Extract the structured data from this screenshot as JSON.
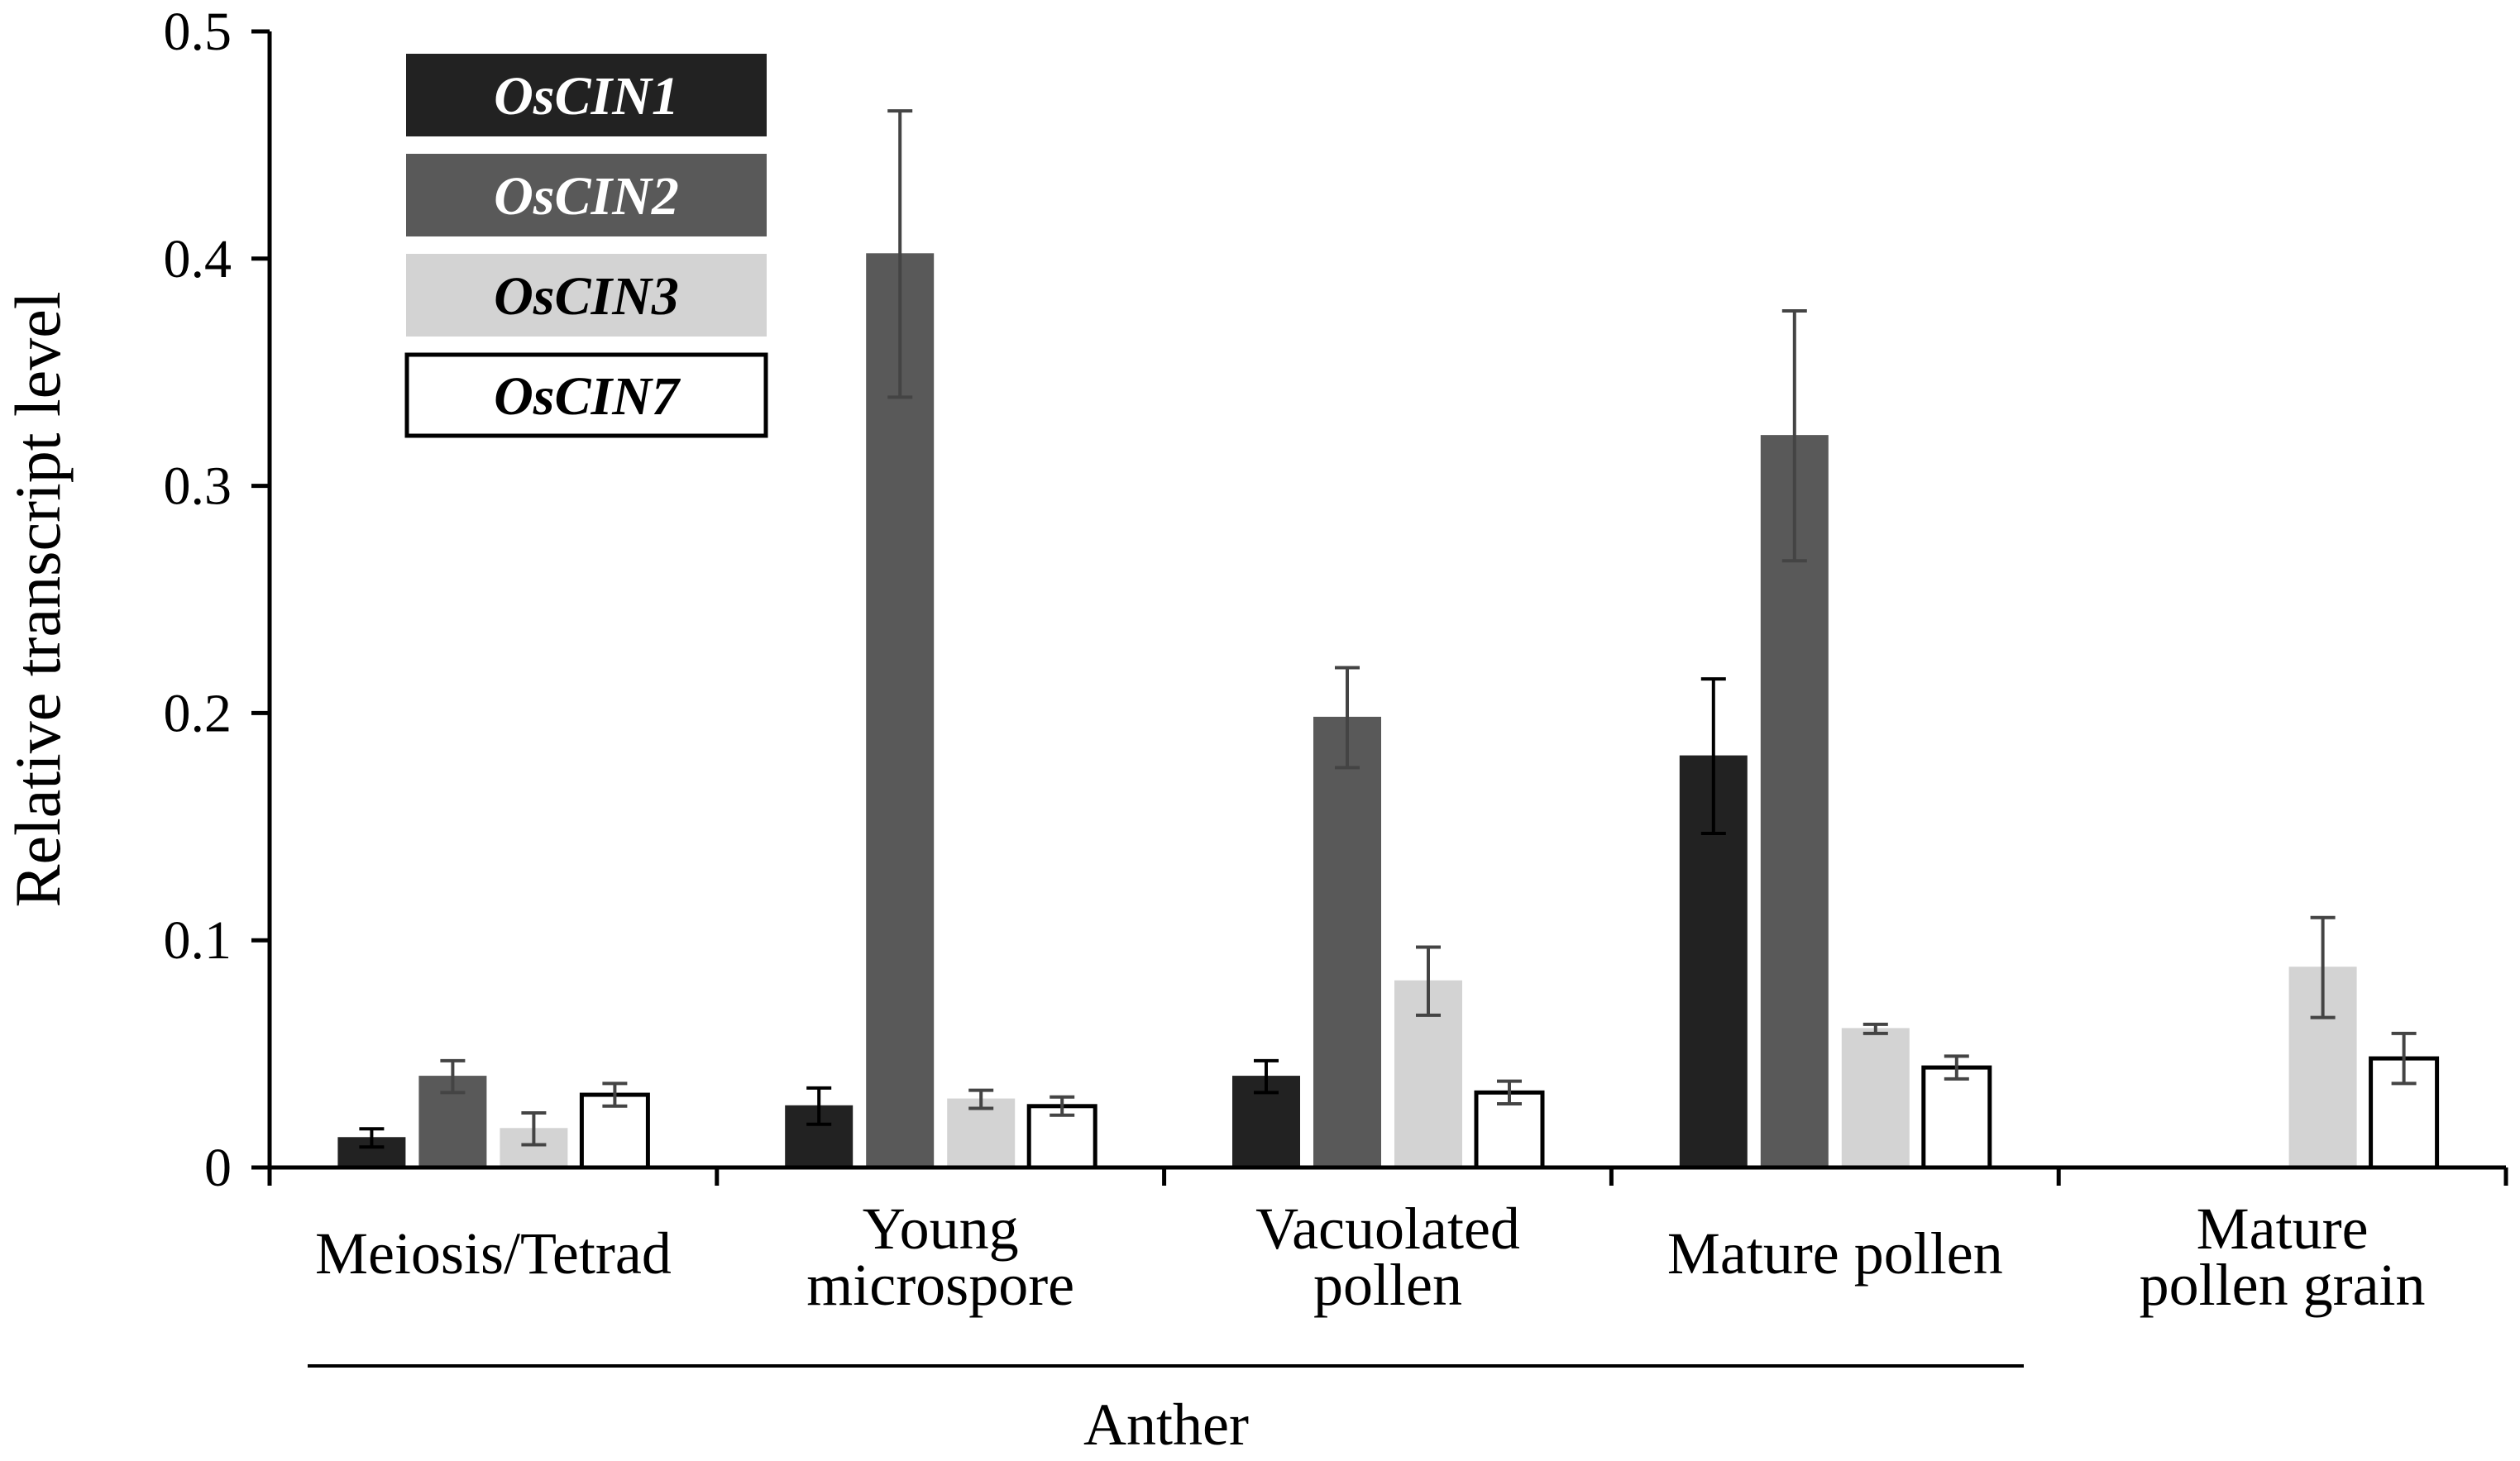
{
  "chart_data": {
    "type": "bar",
    "title": "",
    "xlabel": "",
    "ylabel": "Relative transcript level",
    "ylim": [
      0,
      0.5
    ],
    "yticks": [
      "0",
      "0.1",
      "0.2",
      "0.3",
      "0.4",
      "0.5"
    ],
    "categories": [
      {
        "lines": [
          "Meiosis/Tetrad"
        ]
      },
      {
        "lines": [
          "Young",
          "microspore"
        ]
      },
      {
        "lines": [
          "Vacuolated",
          "pollen"
        ]
      },
      {
        "lines": [
          "Mature pollen"
        ]
      },
      {
        "lines": [
          "Mature",
          "pollen grain"
        ]
      }
    ],
    "group_label": "Anther",
    "legend_position": "top-left",
    "grid": false,
    "series": [
      {
        "name": "OsCIN1",
        "color": "#222222",
        "label_color": "#ffffff",
        "border": "#222222",
        "values": [
          0.013,
          0.027,
          0.04,
          0.181,
          null
        ],
        "errors": [
          0.004,
          0.008,
          0.007,
          0.034,
          null
        ]
      },
      {
        "name": "OsCIN2",
        "color": "#595959",
        "label_color": "#ffffff",
        "border": "#595959",
        "values": [
          0.04,
          0.402,
          0.198,
          0.322,
          null
        ],
        "errors": [
          0.007,
          0.063,
          0.022,
          0.055,
          null
        ]
      },
      {
        "name": "OsCIN3",
        "color": "#d3d3d3",
        "label_color": "#000000",
        "border": "#d3d3d3",
        "values": [
          0.017,
          0.03,
          0.082,
          0.061,
          0.088
        ],
        "errors": [
          0.007,
          0.004,
          0.015,
          0.002,
          0.022
        ]
      },
      {
        "name": "OsCIN7",
        "color": "#ffffff",
        "label_color": "#000000",
        "border": "#000000",
        "values": [
          0.032,
          0.027,
          0.033,
          0.044,
          0.048
        ],
        "errors": [
          0.005,
          0.004,
          0.005,
          0.005,
          0.011
        ]
      }
    ]
  }
}
